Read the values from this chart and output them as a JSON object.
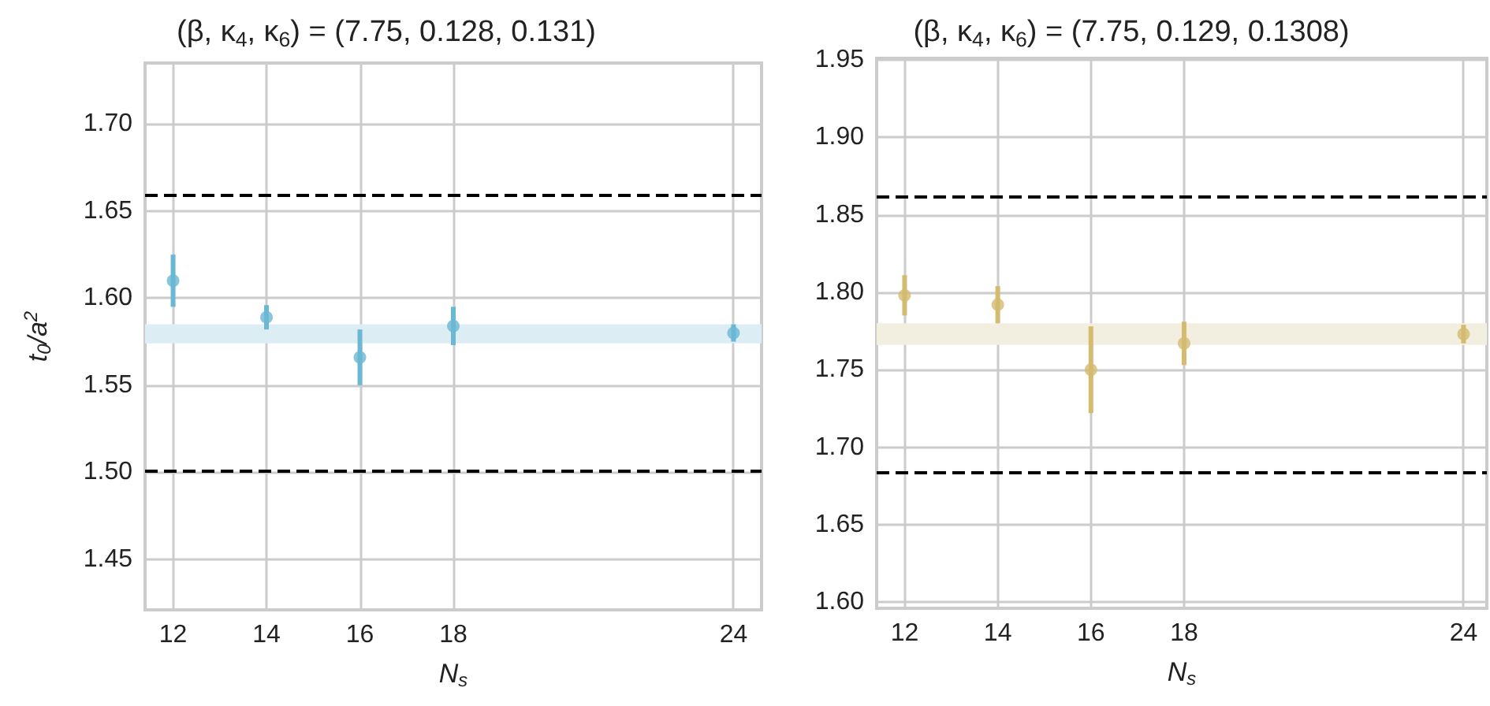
{
  "chart_data": [
    {
      "type": "scatter",
      "title": "(β, κ$_{4}$, κ$_{6}$) = (7.75, 0.128, 0.131)",
      "xlabel": "N$_{s}$",
      "ylabel": "t$_{0}$/a$^{2}$",
      "x": [
        12,
        14,
        16,
        18,
        24
      ],
      "series": [
        {
          "color": "#6bb8d4",
          "values": [
            1.61,
            1.589,
            1.566,
            1.584,
            1.58
          ],
          "errors": [
            0.015,
            0.007,
            0.016,
            0.011,
            0.005
          ]
        }
      ],
      "xlim": [
        11.4,
        24.6
      ],
      "xticks": [
        12,
        14,
        16,
        18,
        24
      ],
      "ylim": [
        1.421,
        1.735
      ],
      "yticks": [
        1.45,
        {
          "value": 1.5,
          "label": "1.50"
        },
        1.55,
        {
          "value": 1.6,
          "label": "1.60"
        },
        1.65,
        {
          "value": 1.7,
          "label": "1.70"
        }
      ],
      "bands": [
        {
          "axis": "y",
          "from": 1.574,
          "to": 1.585,
          "color": "#dcedf4"
        }
      ],
      "ref_lines": [
        {
          "axis": "y",
          "value": 1.659,
          "color": "#000000",
          "line_style": "dashed"
        },
        {
          "axis": "y",
          "value": 1.501,
          "color": "#000000",
          "line_style": "dashed"
        }
      ],
      "grid": true,
      "marker": "circle"
    },
    {
      "type": "scatter",
      "title": "(β, κ$_{4}$, κ$_{6}$) = (7.75, 0.129, 0.1308)",
      "xlabel": "N$_{s}$",
      "x": [
        12,
        14,
        16,
        18,
        24
      ],
      "series": [
        {
          "color": "#d4bb70",
          "values": [
            1.798,
            1.792,
            1.75,
            1.767,
            1.773
          ],
          "errors": [
            0.013,
            0.012,
            0.028,
            0.014,
            0.006
          ]
        }
      ],
      "xlim": [
        11.4,
        24.5
      ],
      "xticks": [
        12,
        14,
        16,
        18,
        24
      ],
      "ylim": [
        1.596,
        1.951
      ],
      "yticks": [
        {
          "value": 1.6,
          "label": "1.60"
        },
        1.65,
        {
          "value": 1.7,
          "label": "1.70"
        },
        1.75,
        {
          "value": 1.8,
          "label": "1.80"
        },
        1.85,
        {
          "value": 1.9,
          "label": "1.90"
        },
        1.95
      ],
      "bands": [
        {
          "axis": "y",
          "from": 1.766,
          "to": 1.78,
          "color": "#f3efe0"
        }
      ],
      "ref_lines": [
        {
          "axis": "y",
          "value": 1.862,
          "color": "#000000",
          "line_style": "dashed"
        },
        {
          "axis": "y",
          "value": 1.684,
          "color": "#000000",
          "line_style": "dashed"
        }
      ],
      "grid": true,
      "marker": "circle"
    }
  ]
}
